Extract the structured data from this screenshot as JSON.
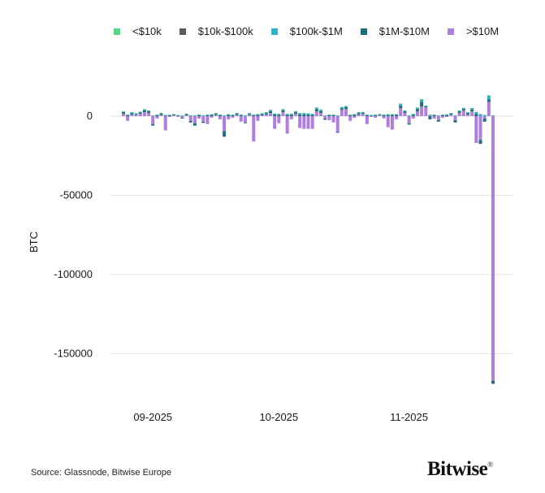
{
  "chart_data": {
    "type": "bar",
    "stacked": true,
    "ylabel": "BTC",
    "xlabel": "",
    "ylim": [
      -170000,
      30000
    ],
    "yticks": [
      0,
      -50000,
      -100000,
      -150000
    ],
    "ytick_labels": [
      "0",
      "-50000",
      "-100000",
      "-150000"
    ],
    "xticks": [
      {
        "date": "2025-09-01",
        "label": "09-2025"
      },
      {
        "date": "2025-10-01",
        "label": "10-2025"
      },
      {
        "date": "2025-11-01",
        "label": "11-2025"
      }
    ],
    "grid": "horizontal",
    "legend_position": "top",
    "x": [
      "2025-08-25",
      "2025-08-26",
      "2025-08-27",
      "2025-08-28",
      "2025-08-29",
      "2025-08-30",
      "2025-08-31",
      "2025-09-01",
      "2025-09-02",
      "2025-09-03",
      "2025-09-04",
      "2025-09-05",
      "2025-09-06",
      "2025-09-07",
      "2025-09-08",
      "2025-09-09",
      "2025-09-10",
      "2025-09-11",
      "2025-09-12",
      "2025-09-13",
      "2025-09-14",
      "2025-09-15",
      "2025-09-16",
      "2025-09-17",
      "2025-09-18",
      "2025-09-19",
      "2025-09-20",
      "2025-09-21",
      "2025-09-22",
      "2025-09-23",
      "2025-09-24",
      "2025-09-25",
      "2025-09-26",
      "2025-09-27",
      "2025-09-28",
      "2025-09-29",
      "2025-09-30",
      "2025-10-01",
      "2025-10-02",
      "2025-10-03",
      "2025-10-04",
      "2025-10-05",
      "2025-10-06",
      "2025-10-07",
      "2025-10-08",
      "2025-10-09",
      "2025-10-10",
      "2025-10-11",
      "2025-10-12",
      "2025-10-13",
      "2025-10-14",
      "2025-10-15",
      "2025-10-16",
      "2025-10-17",
      "2025-10-18",
      "2025-10-19",
      "2025-10-20",
      "2025-10-21",
      "2025-10-22",
      "2025-10-23",
      "2025-10-24",
      "2025-10-25",
      "2025-10-26",
      "2025-10-27",
      "2025-10-28",
      "2025-10-29",
      "2025-10-30",
      "2025-10-31",
      "2025-11-01",
      "2025-11-02",
      "2025-11-03",
      "2025-11-04",
      "2025-11-05",
      "2025-11-06",
      "2025-11-07",
      "2025-11-08",
      "2025-11-09",
      "2025-11-10",
      "2025-11-11",
      "2025-11-12",
      "2025-11-13",
      "2025-11-14",
      "2025-11-15",
      "2025-11-16",
      "2025-11-17",
      "2025-11-18",
      "2025-11-19",
      "2025-11-20",
      "2025-11-21"
    ],
    "series": [
      {
        "name": ">$10M",
        "color": "#b07ee0",
        "values": [
          1500,
          -3000,
          1000,
          800,
          1500,
          2500,
          2000,
          -5000,
          -1500,
          800,
          -9000,
          -500,
          500,
          -500,
          -1000,
          500,
          -3000,
          -4500,
          -1500,
          -3500,
          -5000,
          -1000,
          700,
          -2000,
          -9500,
          -2000,
          -1000,
          800,
          -3500,
          -4000,
          800,
          -16000,
          -3000,
          500,
          1000,
          2000,
          -8000,
          -4500,
          2500,
          -11000,
          -2000,
          1500,
          -7500,
          -8000,
          -8000,
          -8000,
          3000,
          2000,
          -1500,
          -2500,
          -4000,
          -10000,
          4000,
          4500,
          -3000,
          -1000,
          1000,
          1500,
          -5000,
          -500,
          -1000,
          500,
          -1500,
          -7000,
          -8500,
          -2000,
          5000,
          2000,
          -4500,
          -1500,
          3000,
          6000,
          5500,
          500,
          -1500,
          -2500,
          -1000,
          -500,
          1000,
          -2500,
          2000,
          3500,
          1000,
          3000,
          -17000,
          -15000,
          -1500,
          9000,
          -167000
        ]
      },
      {
        "name": "$1M-$10M",
        "color": "#1f6f7a",
        "values": [
          1000,
          500,
          800,
          600,
          800,
          1200,
          1000,
          -1000,
          500,
          700,
          300,
          500,
          400,
          300,
          -500,
          600,
          -1000,
          -1500,
          500,
          -800,
          600,
          800,
          700,
          500,
          -3500,
          800,
          600,
          700,
          500,
          -500,
          600,
          500,
          800,
          700,
          900,
          1200,
          1000,
          800,
          1200,
          800,
          900,
          1000,
          1200,
          1200,
          1000,
          800,
          1500,
          1200,
          -800,
          600,
          500,
          -500,
          1000,
          1200,
          500,
          800,
          900,
          600,
          500,
          300,
          500,
          400,
          600,
          700,
          700,
          800,
          1800,
          1000,
          -800,
          900,
          1500,
          3000,
          600,
          -2000,
          500,
          -1000,
          600,
          700,
          600,
          -1500,
          1000,
          1000,
          800,
          1200,
          1500,
          -2500,
          -2000,
          1500,
          -2000
        ]
      },
      {
        "name": "$100k-$1M",
        "color": "#2bb5c4",
        "values": [
          300,
          300,
          500,
          300,
          400,
          600,
          500,
          300,
          300,
          400,
          300,
          200,
          300,
          200,
          300,
          400,
          300,
          300,
          300,
          300,
          300,
          300,
          400,
          300,
          300,
          300,
          300,
          400,
          300,
          300,
          400,
          300,
          400,
          500,
          500,
          600,
          500,
          500,
          600,
          500,
          500,
          500,
          600,
          600,
          600,
          500,
          800,
          800,
          300,
          300,
          300,
          300,
          600,
          600,
          300,
          400,
          400,
          400,
          300,
          300,
          300,
          300,
          300,
          400,
          400,
          300,
          1000,
          500,
          300,
          400,
          800,
          1500,
          400,
          300,
          300,
          300,
          300,
          300,
          300,
          300,
          500,
          600,
          500,
          800,
          1000,
          1200,
          600,
          2500,
          300
        ]
      },
      {
        "name": "$10k-$100k",
        "color": "#555b5e",
        "values": [
          100,
          100,
          100,
          100,
          100,
          100,
          100,
          100,
          100,
          100,
          100,
          100,
          100,
          100,
          100,
          100,
          100,
          100,
          100,
          100,
          100,
          100,
          100,
          100,
          100,
          100,
          100,
          100,
          100,
          100,
          100,
          100,
          100,
          100,
          100,
          100,
          100,
          100,
          100,
          100,
          100,
          100,
          100,
          100,
          100,
          100,
          100,
          100,
          100,
          100,
          100,
          100,
          100,
          100,
          100,
          100,
          100,
          100,
          100,
          100,
          100,
          100,
          100,
          100,
          100,
          100,
          100,
          100,
          100,
          100,
          100,
          100,
          100,
          100,
          100,
          100,
          100,
          100,
          100,
          100,
          100,
          100,
          100,
          100,
          100,
          100,
          100,
          100,
          100
        ]
      },
      {
        "name": "<$10k",
        "color": "#4fd68c",
        "values": [
          30,
          30,
          30,
          30,
          30,
          30,
          30,
          30,
          30,
          30,
          30,
          30,
          30,
          30,
          30,
          30,
          30,
          30,
          30,
          30,
          30,
          30,
          30,
          30,
          30,
          30,
          30,
          30,
          30,
          30,
          30,
          30,
          30,
          30,
          30,
          30,
          30,
          30,
          30,
          30,
          30,
          30,
          30,
          30,
          30,
          30,
          30,
          30,
          30,
          30,
          30,
          30,
          30,
          30,
          30,
          30,
          30,
          30,
          30,
          30,
          30,
          30,
          30,
          30,
          30,
          30,
          30,
          30,
          30,
          30,
          30,
          30,
          30,
          30,
          30,
          30,
          30,
          30,
          30,
          30,
          30,
          30,
          30,
          30,
          30,
          30,
          30,
          30,
          30
        ]
      }
    ],
    "legend": [
      "<$10k",
      "$10k-$100k",
      "$100k-$1M",
      "$1M-$10M",
      ">$10M"
    ]
  },
  "legend_items": [
    {
      "label": "<$10k",
      "color": "#4fd68c"
    },
    {
      "label": "$10k-$100k",
      "color": "#555b5e"
    },
    {
      "label": "$100k-$1M",
      "color": "#2bb5c4"
    },
    {
      "label": "$1M-$10M",
      "color": "#1f6f7a"
    },
    {
      "label": ">$10M",
      "color": "#b07ee0"
    }
  ],
  "footer": {
    "source": "Source: Glassnode, Bitwise Europe",
    "logo": "Bitwise",
    "logo_mark": "®"
  }
}
